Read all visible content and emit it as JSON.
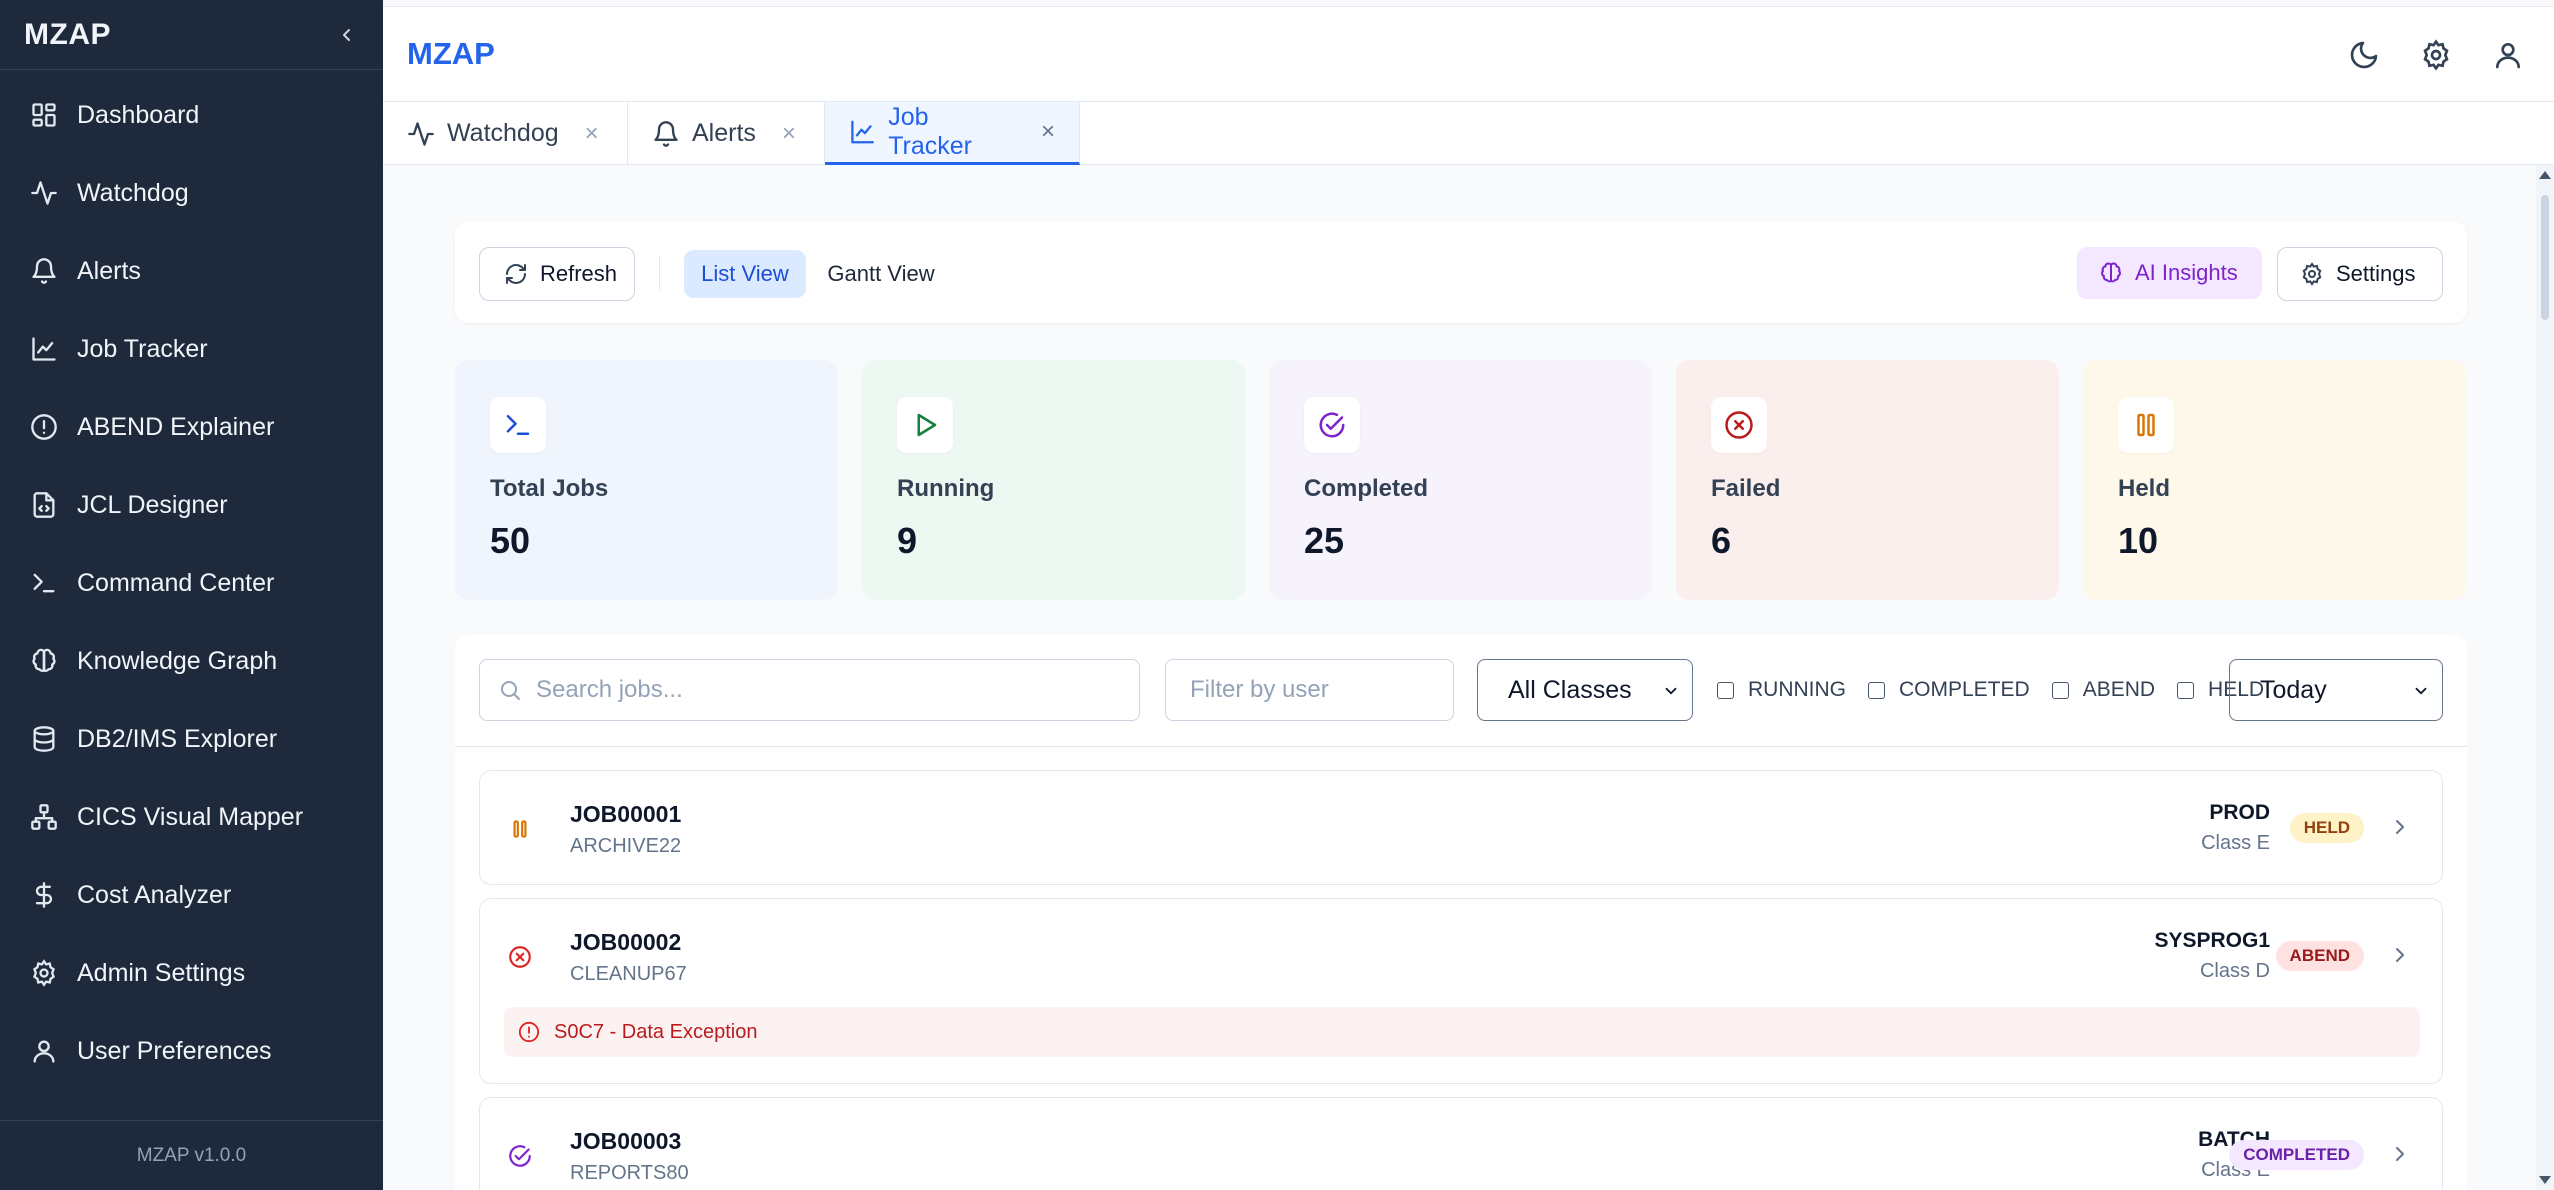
{
  "sidebar": {
    "logo": "MZAP",
    "items": [
      {
        "label": "Dashboard",
        "icon": "dashboard-icon"
      },
      {
        "label": "Watchdog",
        "icon": "activity-icon"
      },
      {
        "label": "Alerts",
        "icon": "bell-icon"
      },
      {
        "label": "Job Tracker",
        "icon": "chart-line-icon"
      },
      {
        "label": "ABEND Explainer",
        "icon": "alert-circle-icon"
      },
      {
        "label": "JCL Designer",
        "icon": "file-code-icon"
      },
      {
        "label": "Command Center",
        "icon": "terminal-icon"
      },
      {
        "label": "Knowledge Graph",
        "icon": "brain-icon"
      },
      {
        "label": "DB2/IMS Explorer",
        "icon": "database-icon"
      },
      {
        "label": "CICS Visual Mapper",
        "icon": "network-icon"
      },
      {
        "label": "Cost Analyzer",
        "icon": "dollar-icon"
      },
      {
        "label": "Admin Settings",
        "icon": "gear-icon"
      },
      {
        "label": "User Preferences",
        "icon": "user-icon"
      }
    ],
    "version": "MZAP v1.0.0"
  },
  "header": {
    "brand": "MZAP",
    "icons": [
      "moon-icon",
      "gear-icon",
      "user-icon"
    ]
  },
  "tabs": [
    {
      "label": "Watchdog",
      "icon": "activity-icon",
      "close": "×"
    },
    {
      "label": "Alerts",
      "icon": "bell-icon",
      "close": "×"
    },
    {
      "label": "Job Tracker",
      "icon": "chart-line-icon",
      "close": "×",
      "active": true
    }
  ],
  "toolbar": {
    "refresh": "Refresh",
    "list_view": "List View",
    "gantt_view": "Gantt View",
    "ai_insights": "AI Insights",
    "settings": "Settings"
  },
  "stats": [
    {
      "label": "Total Jobs",
      "value": "50",
      "icon": "terminal-icon",
      "bg": "#eff4fd",
      "color": "#1d4ed8"
    },
    {
      "label": "Running",
      "value": "9",
      "icon": "play-icon",
      "bg": "#eef8f2",
      "color": "#15803d"
    },
    {
      "label": "Completed",
      "value": "25",
      "icon": "check-circle-icon",
      "bg": "#f7f3fd",
      "color": "#7e22ce"
    },
    {
      "label": "Failed",
      "value": "6",
      "icon": "x-circle-icon",
      "bg": "#fbefee",
      "color": "#b91c1c"
    },
    {
      "label": "Held",
      "value": "10",
      "icon": "pause-icon",
      "bg": "#fdf8ea",
      "color": "#c2410c"
    }
  ],
  "filters": {
    "search_placeholder": "Search jobs...",
    "user_placeholder": "Filter by user",
    "class_select": "All Classes",
    "statuses": [
      "RUNNING",
      "COMPLETED",
      "ABEND",
      "HELD"
    ],
    "date_select": "Today"
  },
  "jobs": [
    {
      "id": "JOB00001",
      "name": "ARCHIVE22",
      "owner": "PROD",
      "class": "Class E",
      "status": "HELD",
      "icon": "pause-icon",
      "icon_color": "#d97706",
      "badge_bg": "#fef3c7",
      "badge_color": "#92400e"
    },
    {
      "id": "JOB00002",
      "name": "CLEANUP67",
      "owner": "SYSPROG1",
      "class": "Class D",
      "status": "ABEND",
      "icon": "x-circle-icon",
      "icon_color": "#dc2626",
      "badge_bg": "#fee2e2",
      "badge_color": "#991b1b",
      "error": "S0C7 - Data Exception"
    },
    {
      "id": "JOB00003",
      "name": "REPORTS80",
      "owner": "BATCH",
      "class": "Class E",
      "status": "COMPLETED",
      "icon": "check-circle-icon",
      "icon_color": "#7e22ce",
      "badge_bg": "#f3e8ff",
      "badge_color": "#6b21a8"
    }
  ]
}
